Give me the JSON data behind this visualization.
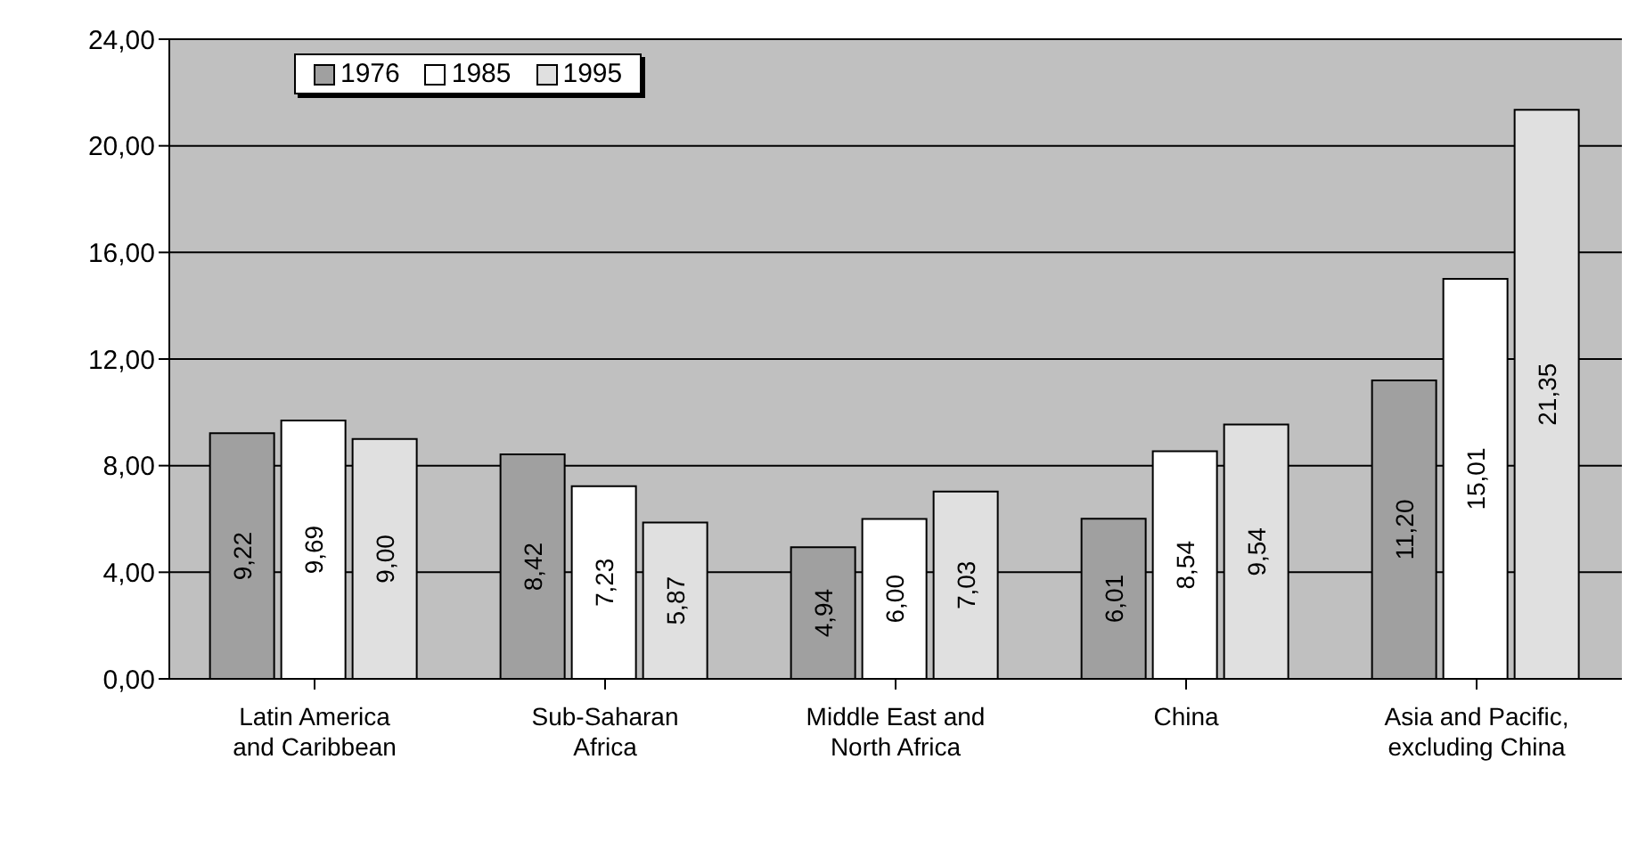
{
  "chart_data": {
    "type": "bar",
    "categories": [
      "Latin America\nand Caribbean",
      "Sub-Saharan\nAfrica",
      "Middle East and\nNorth Africa",
      "China",
      "Asia and Pacific,\nexcluding China"
    ],
    "series": [
      {
        "name": "1976",
        "color": "#a0a0a0",
        "values": [
          9.22,
          8.42,
          4.94,
          6.01,
          11.2
        ],
        "value_labels": [
          "9,22",
          "8,42",
          "4,94",
          "6,01",
          "11,20"
        ]
      },
      {
        "name": "1985",
        "color": "#ffffff",
        "values": [
          9.69,
          7.23,
          6.0,
          8.54,
          15.01
        ],
        "value_labels": [
          "9,69",
          "7,23",
          "6,00",
          "8,54",
          "15,01"
        ]
      },
      {
        "name": "1995",
        "color": "#e0e0e0",
        "values": [
          9.0,
          5.87,
          7.03,
          9.54,
          21.35
        ],
        "value_labels": [
          "9,00",
          "5,87",
          "7,03",
          "9,54",
          "21,35"
        ]
      }
    ],
    "ylim": [
      0,
      24
    ],
    "yticks": [
      {
        "value": 0,
        "label": "0,00"
      },
      {
        "value": 4,
        "label": "4,00"
      },
      {
        "value": 8,
        "label": "8,00"
      },
      {
        "value": 12,
        "label": "12,00"
      },
      {
        "value": 16,
        "label": "16,00"
      },
      {
        "value": 20,
        "label": "20,00"
      },
      {
        "value": 24,
        "label": "24,00"
      }
    ],
    "grid": "y",
    "legend": "top left"
  }
}
